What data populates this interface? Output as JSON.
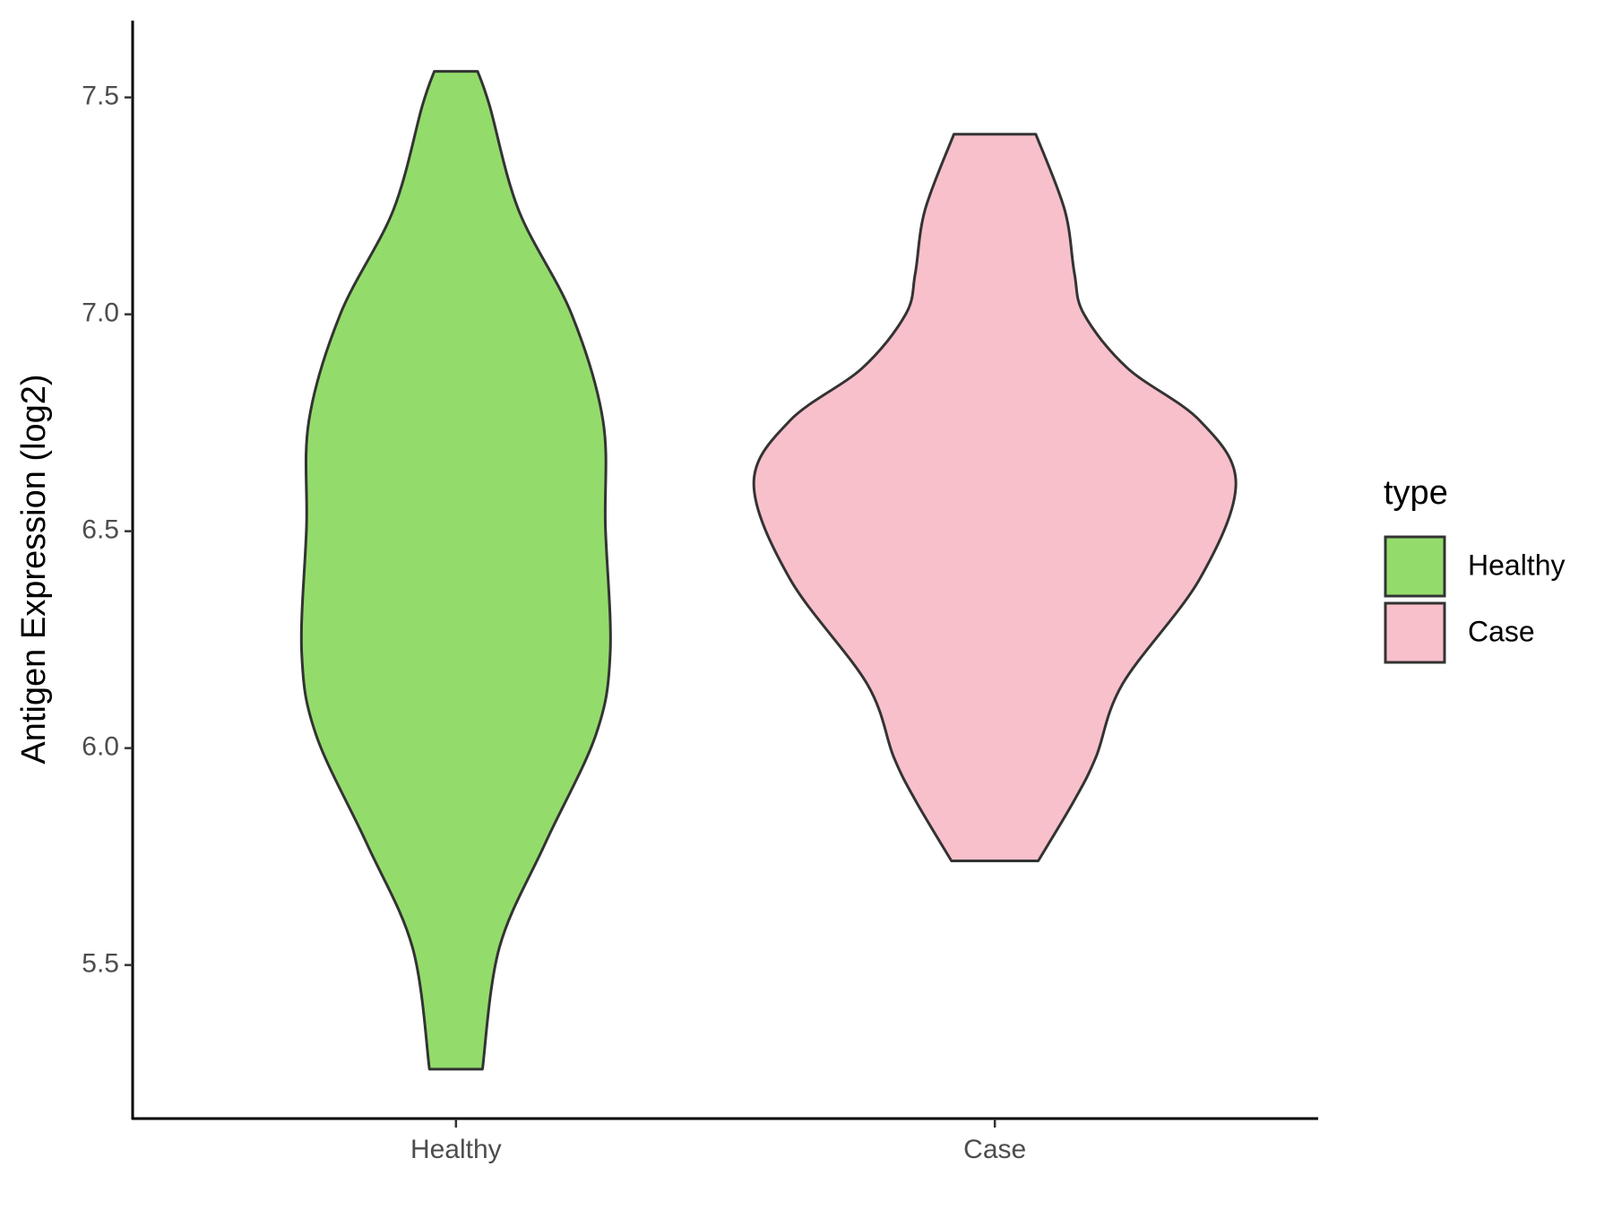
{
  "chart_data": {
    "type": "violin",
    "y_label": "Antigen Expression (log2)",
    "categories": [
      "Healthy",
      "Case"
    ],
    "series": [
      {
        "name": "Healthy",
        "color": "#93dc6b",
        "values": [
          7.56,
          7.48,
          7.24,
          7.0,
          6.755,
          6.51,
          6.22,
          6.03,
          5.78,
          5.54,
          5.26
        ],
        "density": [
          0.09,
          0.14,
          0.26,
          0.48,
          0.61,
          0.62,
          0.64,
          0.58,
          0.37,
          0.18,
          0.11
        ]
      },
      {
        "name": "Case",
        "color": "#f8c0cb",
        "values": [
          7.415,
          7.24,
          7.095,
          7.0,
          6.876,
          6.755,
          6.61,
          6.39,
          6.148,
          5.98,
          5.88,
          5.74
        ],
        "density": [
          0.17,
          0.29,
          0.33,
          0.37,
          0.55,
          0.85,
          1.0,
          0.85,
          0.53,
          0.42,
          0.33,
          0.18
        ]
      }
    ],
    "ylim": [
      5.146,
      7.677
    ],
    "yticks": [
      5.5,
      {
        "value": 6,
        "label": "6.0"
      },
      6.5,
      {
        "value": 7,
        "label": "7.0"
      },
      7.5
    ],
    "legend": {
      "title": "type",
      "position": "right"
    }
  }
}
